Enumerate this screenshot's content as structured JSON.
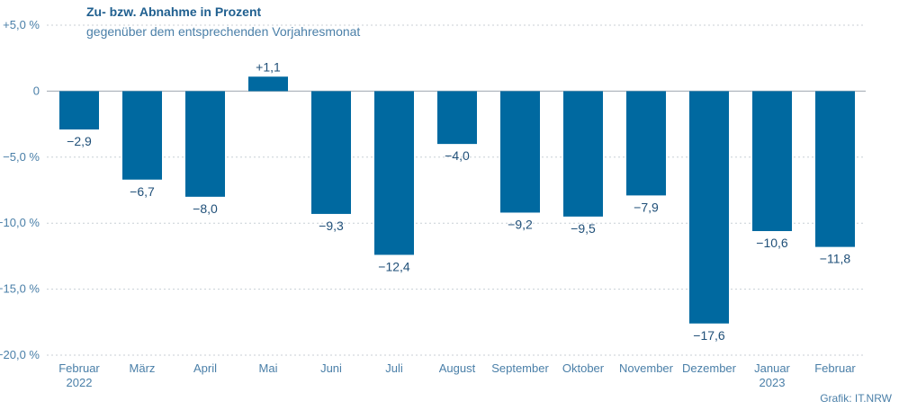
{
  "credit": "Grafik: IT.NRW",
  "colors": {
    "bar": "#0069a0",
    "text": "#1f4f78",
    "axis": "#4a7fa8",
    "grid": "#c8cfd6",
    "zero_line": "#b0b7bf"
  },
  "chart_data": {
    "type": "bar",
    "title": "Zu- bzw. Abnahme in Prozent",
    "subtitle": "gegenüber dem entsprechenden Vorjahresmonat",
    "categories": [
      [
        "Februar",
        "2022"
      ],
      [
        "März"
      ],
      [
        "April"
      ],
      [
        "Mai"
      ],
      [
        "Juni"
      ],
      [
        "Juli"
      ],
      [
        "August"
      ],
      [
        "September"
      ],
      [
        "Oktober"
      ],
      [
        "November"
      ],
      [
        "Dezember"
      ],
      [
        "Januar",
        "2023"
      ],
      [
        "Februar"
      ]
    ],
    "values": [
      -2.9,
      -6.7,
      -8.0,
      1.1,
      -9.3,
      -12.4,
      -4.0,
      -9.2,
      -9.5,
      -7.9,
      -17.6,
      -10.6,
      -11.8
    ],
    "value_labels": [
      "−2,9",
      "−6,7",
      "−8,0",
      "+1,1",
      "−9,3",
      "−12,4",
      "−4,0",
      "−9,2",
      "−9,5",
      "−7,9",
      "−17,6",
      "−10,6",
      "−11,8"
    ],
    "yticks": [
      5,
      0,
      -5,
      -10,
      -15,
      -20
    ],
    "ytick_labels": [
      "+5,0 %",
      "0",
      "−5,0 %",
      "−10,0 %",
      "−15,0 %",
      "−20,0 %"
    ],
    "ylim": [
      -20,
      5
    ],
    "grid": true,
    "xlabel": "",
    "ylabel": ""
  }
}
